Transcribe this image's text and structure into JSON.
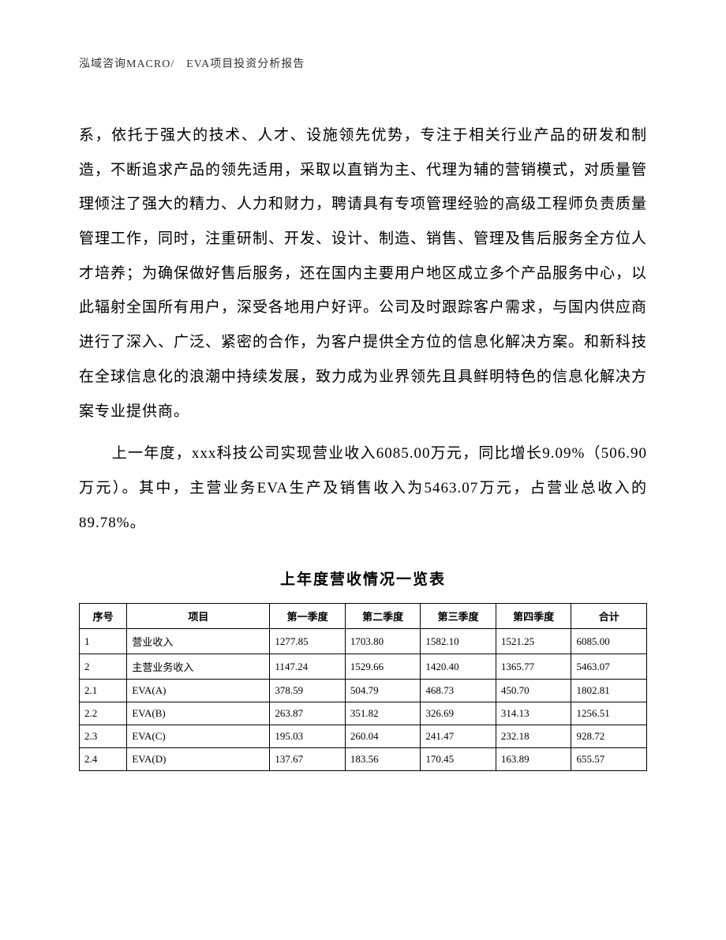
{
  "header": {
    "text": "泓域咨询MACRO/　EVA项目投资分析报告"
  },
  "paragraphs": {
    "p1": "系，依托于强大的技术、人才、设施领先优势，专注于相关行业产品的研发和制造，不断追求产品的领先适用，采取以直销为主、代理为辅的营销模式，对质量管理倾注了强大的精力、人力和财力，聘请具有专项管理经验的高级工程师负责质量管理工作，同时，注重研制、开发、设计、制造、销售、管理及售后服务全方位人才培养；为确保做好售后服务，还在国内主要用户地区成立多个产品服务中心，以此辐射全国所有用户，深受各地用户好评。公司及时跟踪客户需求，与国内供应商进行了深入、广泛、紧密的合作，为客户提供全方位的信息化解决方案。和新科技在全球信息化的浪潮中持续发展，致力成为业界领先且具鲜明特色的信息化解决方案专业提供商。",
    "p2": "上一年度，xxx科技公司实现营业收入6085.00万元，同比增长9.09%（506.90万元）。其中，主营业务EVA生产及销售收入为5463.07万元，占营业总收入的89.78%。"
  },
  "table": {
    "title": "上年度营收情况一览表",
    "headers": {
      "col0": "序号",
      "col1": "项目",
      "col2": "第一季度",
      "col3": "第二季度",
      "col4": "第三季度",
      "col5": "第四季度",
      "col6": "合计"
    },
    "rows": [
      {
        "c0": "1",
        "c1": "营业收入",
        "c2": "1277.85",
        "c3": "1703.80",
        "c4": "1582.10",
        "c5": "1521.25",
        "c6": "6085.00"
      },
      {
        "c0": "2",
        "c1": "主营业务收入",
        "c2": "1147.24",
        "c3": "1529.66",
        "c4": "1420.40",
        "c5": "1365.77",
        "c6": "5463.07"
      },
      {
        "c0": "2.1",
        "c1": "EVA(A)",
        "c2": "378.59",
        "c3": "504.79",
        "c4": "468.73",
        "c5": "450.70",
        "c6": "1802.81"
      },
      {
        "c0": "2.2",
        "c1": "EVA(B)",
        "c2": "263.87",
        "c3": "351.82",
        "c4": "326.69",
        "c5": "314.13",
        "c6": "1256.51"
      },
      {
        "c0": "2.3",
        "c1": "EVA(C)",
        "c2": "195.03",
        "c3": "260.04",
        "c4": "241.47",
        "c5": "232.18",
        "c6": "928.72"
      },
      {
        "c0": "2.4",
        "c1": "EVA(D)",
        "c2": "137.67",
        "c3": "183.56",
        "c4": "170.45",
        "c5": "163.89",
        "c6": "655.57"
      }
    ]
  }
}
